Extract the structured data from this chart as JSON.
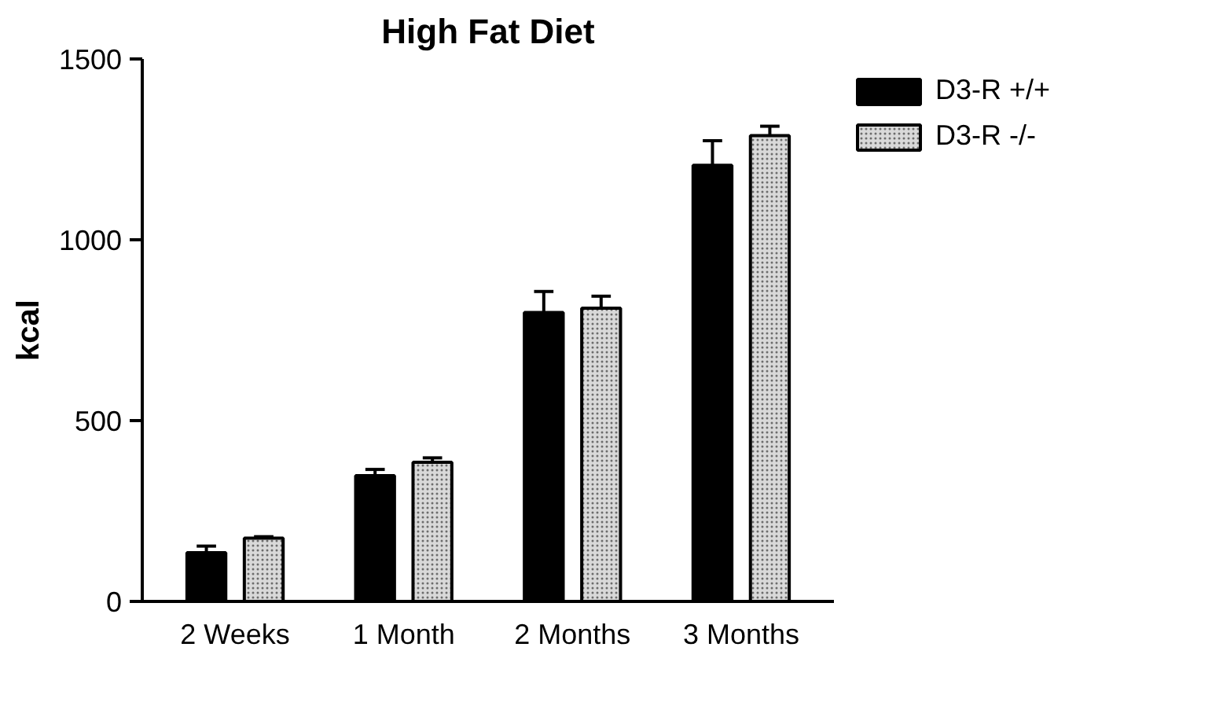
{
  "chart_data": {
    "type": "bar",
    "title": "High Fat Diet",
    "ylabel": "kcal",
    "categories": [
      "2 Weeks",
      "1 Month",
      "2 Months",
      "3 Months"
    ],
    "series": [
      {
        "name": "D3-R +/+",
        "color": "#000000",
        "values": [
          135,
          348,
          799,
          1206
        ],
        "errors": [
          [
            135,
            153
          ],
          [
            348,
            365
          ],
          [
            799,
            857
          ],
          [
            1206,
            1274
          ]
        ]
      },
      {
        "name": "D3-R -/-",
        "color": "#d9d9d9",
        "values": [
          175,
          385,
          811,
          1288
        ],
        "errors": [
          [
            175,
            179
          ],
          [
            385,
            397
          ],
          [
            811,
            844
          ],
          [
            1288,
            1314
          ]
        ]
      }
    ],
    "ylim": [
      0,
      1500
    ],
    "yticks": [
      0,
      500,
      1000,
      1500
    ],
    "grid": false,
    "legend": "top right"
  }
}
